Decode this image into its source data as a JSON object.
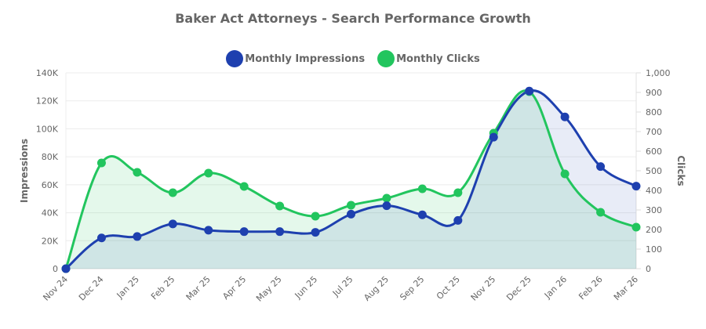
{
  "chart_data": {
    "type": "line",
    "title": "Baker Act Attorneys - Search Performance Growth",
    "categories": [
      "Nov 24",
      "Dec 24",
      "Jan 25",
      "Feb 25",
      "Mar 25",
      "Apr 25",
      "May 25",
      "Jun 25",
      "Jul 25",
      "Aug 25",
      "Sep 25",
      "Oct 25",
      "Nov 25",
      "Dec 25",
      "Jan 26",
      "Feb 26",
      "Mar 26"
    ],
    "series": [
      {
        "name": "Monthly Impressions",
        "axis": "left",
        "color": "#1e40af",
        "fill": "rgba(30,64,175,0.10)",
        "values": [
          0,
          22000,
          23000,
          32000,
          27500,
          26500,
          26500,
          26000,
          39000,
          45000,
          38500,
          34500,
          94000,
          127000,
          108500,
          73000,
          59000
        ]
      },
      {
        "name": "Monthly Clicks",
        "axis": "right",
        "color": "#22c55e",
        "fill": "rgba(34,197,94,0.12)",
        "values": [
          0,
          540,
          492,
          388,
          488,
          420,
          320,
          268,
          324,
          360,
          408,
          388,
          692,
          904,
          484,
          288,
          212
        ]
      }
    ],
    "ylabel": "Impressions",
    "y2label": "Clicks",
    "ylim": [
      0,
      140000
    ],
    "y2lim": [
      0,
      1000
    ],
    "yticks": [
      "0",
      "20K",
      "40K",
      "60K",
      "80K",
      "100K",
      "120K",
      "140K"
    ],
    "y2ticks": [
      "0",
      "100",
      "200",
      "300",
      "400",
      "500",
      "600",
      "700",
      "800",
      "900",
      "1,000"
    ],
    "grid": true,
    "legend_position": "top"
  },
  "legend": {
    "impressions_label": "Monthly Impressions",
    "clicks_label": "Monthly Clicks",
    "impressions_color": "#1e40af",
    "clicks_color": "#22c55e"
  }
}
